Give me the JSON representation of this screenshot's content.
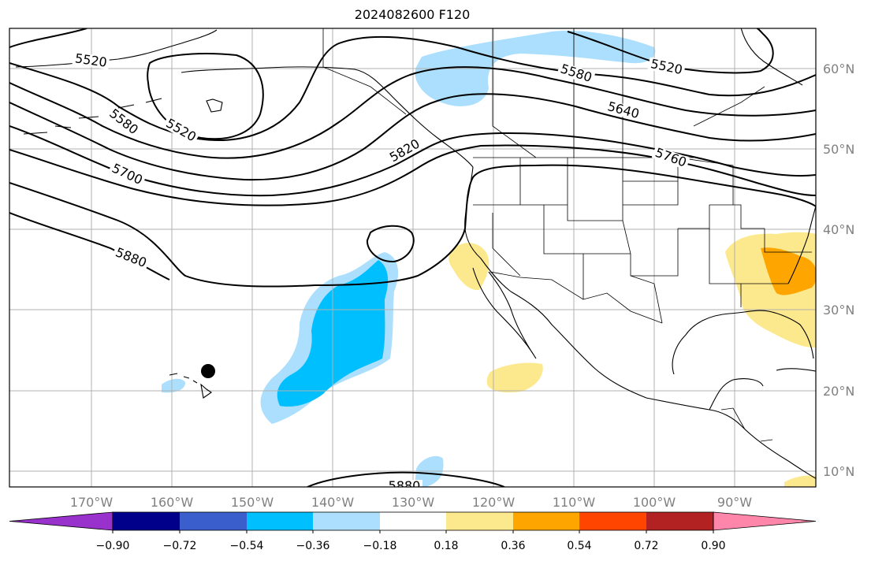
{
  "title": "2024082600 F120",
  "colors": {
    "contour": "#000000",
    "coast": "#000000",
    "grid": "#b0b0b0",
    "neg_light": "#abdffd",
    "neg_deep": "#00bfff",
    "pos_yellow": "#fde98d",
    "pos_orange": "#ffa500",
    "marker": "#000000"
  },
  "map": {
    "lon_labels": [
      "170°W",
      "160°W",
      "150°W",
      "140°W",
      "130°W",
      "120°W",
      "110°W",
      "100°W",
      "90°W"
    ],
    "lat_labels": [
      "60°N",
      "50°N",
      "40°N",
      "30°N",
      "20°N",
      "10°N"
    ],
    "contour_labels": [
      "5520",
      "5520",
      "5520",
      "5580",
      "5580",
      "5640",
      "5700",
      "5760",
      "5820",
      "5880",
      "5880"
    ],
    "marker": "black-dot"
  },
  "colorbar": {
    "colors": [
      "#9932cc",
      "#00008b",
      "#3a5fcd",
      "#00bfff",
      "#abdffd",
      "#ffffff",
      "#fde98d",
      "#ffa500",
      "#ff4500",
      "#b22222",
      "#ff86ab"
    ],
    "ticks": [
      "−0.90",
      "−0.72",
      "−0.54",
      "−0.36",
      "−0.18",
      "0.18",
      "0.36",
      "0.54",
      "0.72",
      "0.90"
    ],
    "extend": "both"
  }
}
